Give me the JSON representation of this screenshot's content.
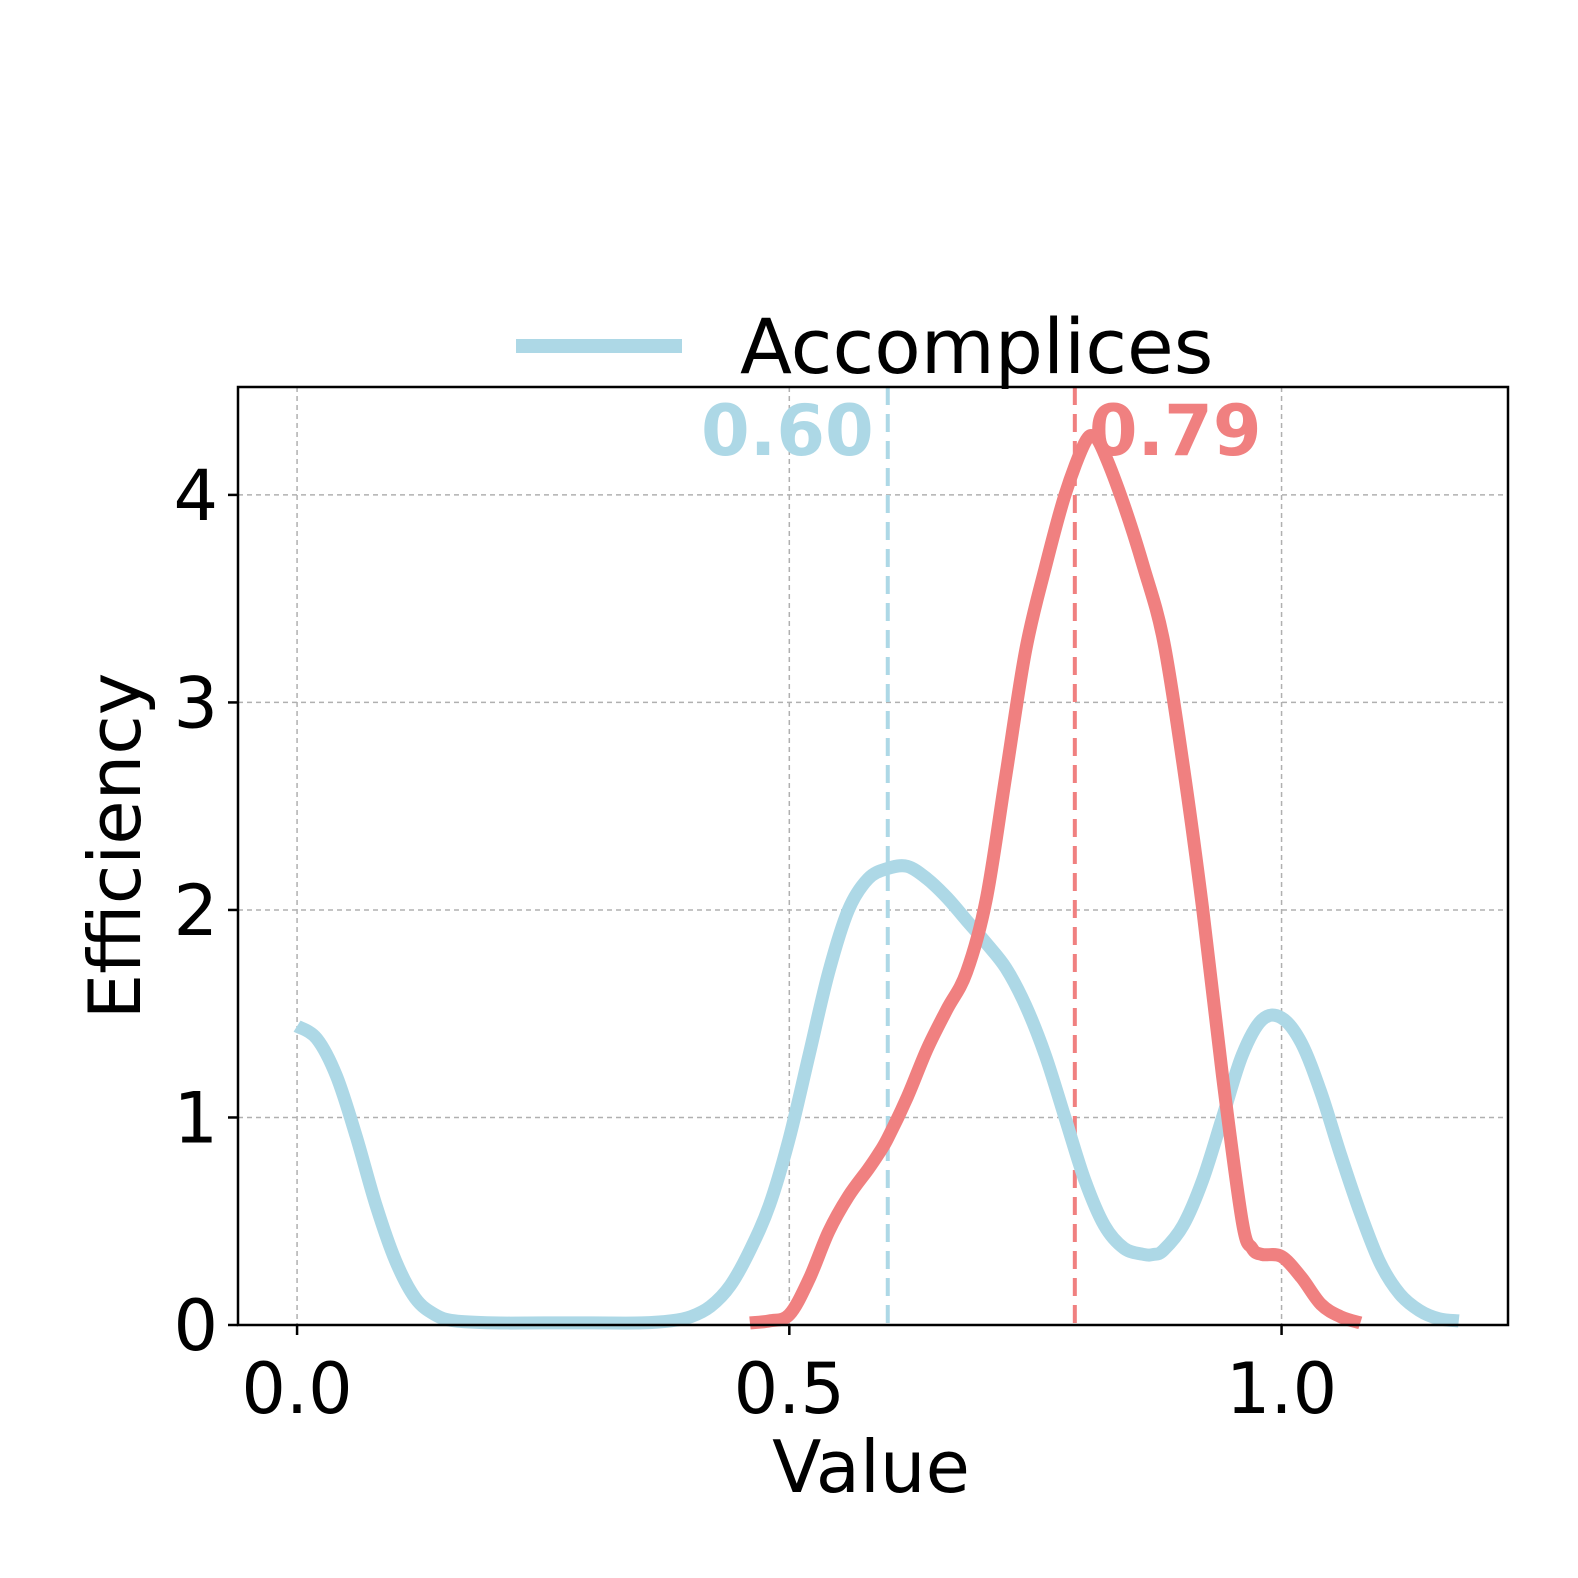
{
  "chart_data": {
    "type": "line",
    "title": "",
    "xlabel": "Value",
    "ylabel": "Efficiency",
    "xlim": [
      -0.06,
      1.23
    ],
    "ylim": [
      0,
      4.52
    ],
    "xticks": [
      0.0,
      0.5,
      1.0
    ],
    "xtick_labels": [
      "0.0",
      "0.5",
      "1.0"
    ],
    "yticks": [
      0,
      1,
      2,
      3,
      4
    ],
    "ytick_labels": [
      "0",
      "1",
      "2",
      "3",
      "4"
    ],
    "grid": true,
    "legend": {
      "placement": "top-center",
      "entries": [
        "Accomplices"
      ]
    },
    "series": [
      {
        "name": "Accomplices",
        "color": "#add8e6",
        "x": [
          0.0,
          0.02,
          0.04,
          0.06,
          0.08,
          0.1,
          0.12,
          0.14,
          0.16,
          0.2,
          0.25,
          0.3,
          0.35,
          0.38,
          0.4,
          0.42,
          0.44,
          0.46,
          0.48,
          0.5,
          0.52,
          0.54,
          0.56,
          0.58,
          0.6,
          0.62,
          0.64,
          0.66,
          0.68,
          0.7,
          0.72,
          0.74,
          0.76,
          0.78,
          0.8,
          0.82,
          0.84,
          0.86,
          0.87,
          0.88,
          0.9,
          0.92,
          0.94,
          0.96,
          0.98,
          1.0,
          1.02,
          1.04,
          1.06,
          1.08,
          1.1,
          1.12,
          1.14,
          1.16,
          1.18
        ],
        "values": [
          1.44,
          1.38,
          1.2,
          0.91,
          0.58,
          0.31,
          0.13,
          0.05,
          0.02,
          0.01,
          0.01,
          0.01,
          0.01,
          0.02,
          0.04,
          0.09,
          0.19,
          0.36,
          0.58,
          0.9,
          1.3,
          1.7,
          2.0,
          2.15,
          2.2,
          2.21,
          2.15,
          2.06,
          1.95,
          1.84,
          1.72,
          1.54,
          1.3,
          1.0,
          0.7,
          0.48,
          0.37,
          0.34,
          0.34,
          0.36,
          0.48,
          0.7,
          1.0,
          1.3,
          1.47,
          1.48,
          1.36,
          1.12,
          0.82,
          0.54,
          0.3,
          0.15,
          0.07,
          0.03,
          0.02
        ]
      },
      {
        "name": "",
        "color": "#f08080",
        "x": [
          0.46,
          0.48,
          0.5,
          0.52,
          0.54,
          0.56,
          0.58,
          0.59,
          0.6,
          0.62,
          0.64,
          0.66,
          0.68,
          0.7,
          0.72,
          0.74,
          0.76,
          0.78,
          0.8,
          0.81,
          0.82,
          0.84,
          0.86,
          0.88,
          0.9,
          0.92,
          0.94,
          0.96,
          0.97,
          0.98,
          1.0,
          1.02,
          1.04,
          1.06,
          1.08
        ],
        "values": [
          0.01,
          0.02,
          0.05,
          0.22,
          0.45,
          0.62,
          0.75,
          0.82,
          0.9,
          1.1,
          1.33,
          1.52,
          1.7,
          2.05,
          2.65,
          3.25,
          3.65,
          4.0,
          4.25,
          4.28,
          4.2,
          3.95,
          3.65,
          3.3,
          2.7,
          2.0,
          1.2,
          0.5,
          0.37,
          0.34,
          0.33,
          0.23,
          0.1,
          0.04,
          0.01
        ]
      }
    ],
    "vlines": [
      {
        "x": 0.6,
        "label": "0.60",
        "color": "#add8e6"
      },
      {
        "x": 0.79,
        "label": "0.79",
        "color": "#f08080"
      }
    ]
  }
}
